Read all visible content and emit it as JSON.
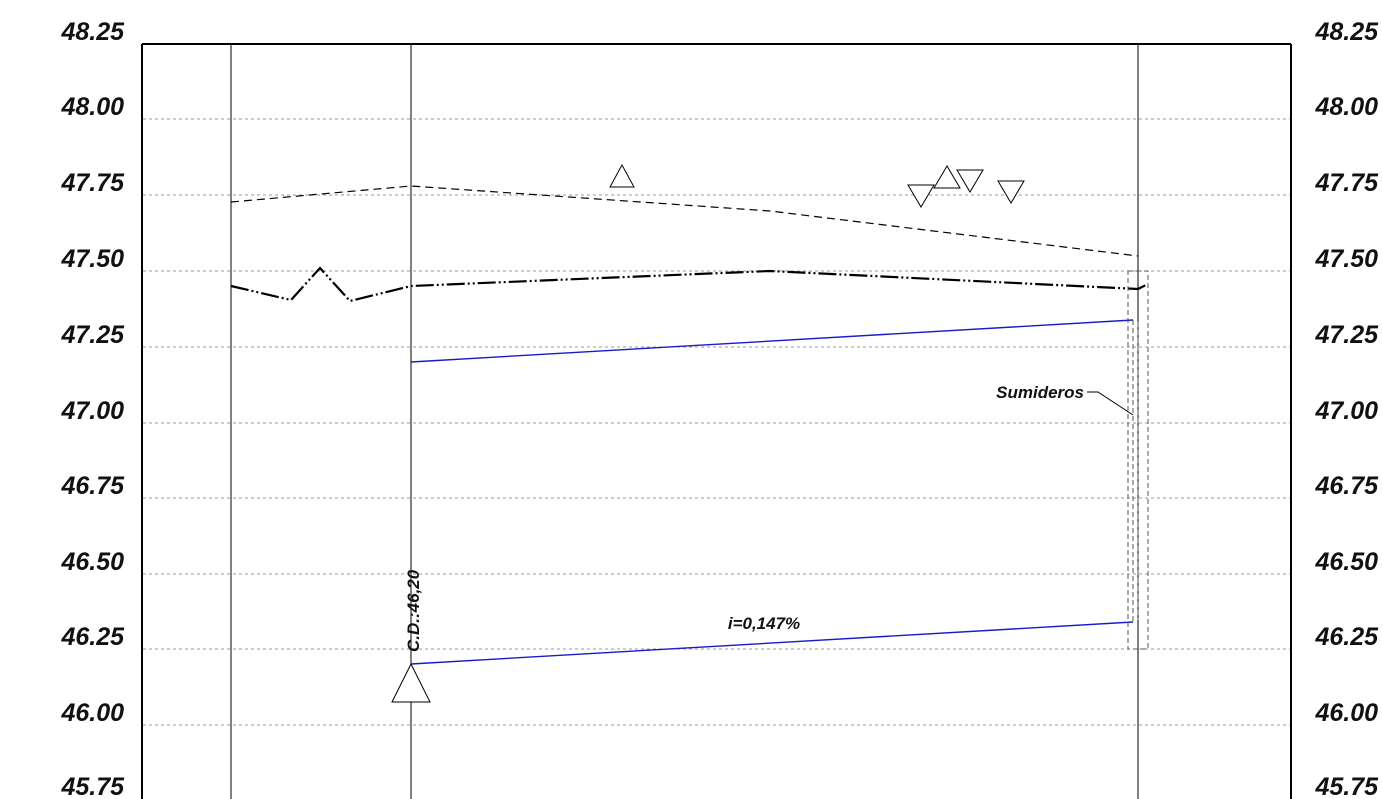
{
  "elevation_labels": [
    "48.25",
    "48.00",
    "47.75",
    "47.50",
    "47.25",
    "47.00",
    "46.75",
    "46.50",
    "46.25",
    "46.00",
    "45.75"
  ],
  "annotations": {
    "sump_label": "Sumideros",
    "slope_label": "i=0,147%",
    "invert_label": "C.D.:46,20"
  },
  "colors": {
    "pipe": "#1a1acc",
    "terrain": "#000000",
    "grid": "#9a9a9a"
  }
}
